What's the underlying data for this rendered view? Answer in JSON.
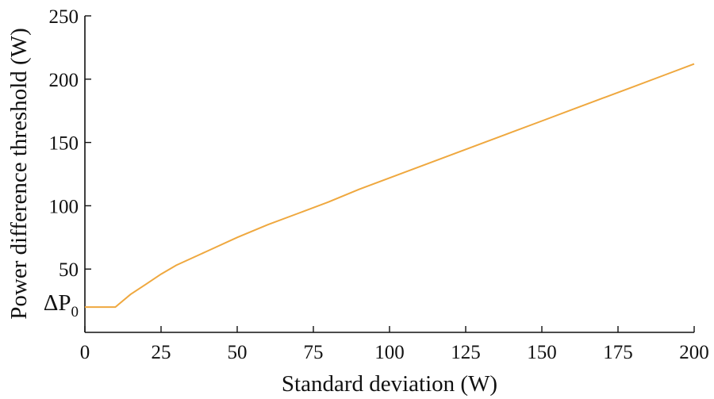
{
  "chart_data": {
    "type": "line",
    "xlabel": "Standard deviation (W)",
    "ylabel": "Power difference threshold (W)",
    "xlim": [
      0,
      200
    ],
    "ylim": [
      0,
      250
    ],
    "x_ticks": [
      "0",
      "25",
      "50",
      "75",
      "100",
      "125",
      "150",
      "175",
      "200"
    ],
    "y_ticks": [
      "50",
      "100",
      "150",
      "200",
      "250"
    ],
    "annotation": {
      "main": "ΔP",
      "sub": "0",
      "y": 20
    },
    "grid": false,
    "line_color": "#EFA83F",
    "series": [
      {
        "x": [
          0,
          10,
          15,
          20,
          25,
          30,
          40,
          50,
          60,
          70,
          80,
          90,
          100,
          110,
          120,
          130,
          140,
          150,
          160,
          170,
          180,
          190,
          200
        ],
        "y": [
          20,
          20,
          30,
          38,
          46,
          53,
          64,
          75,
          85,
          94,
          103,
          113,
          122,
          131,
          140,
          149,
          158,
          167,
          176,
          185,
          194,
          203,
          212
        ]
      }
    ]
  }
}
